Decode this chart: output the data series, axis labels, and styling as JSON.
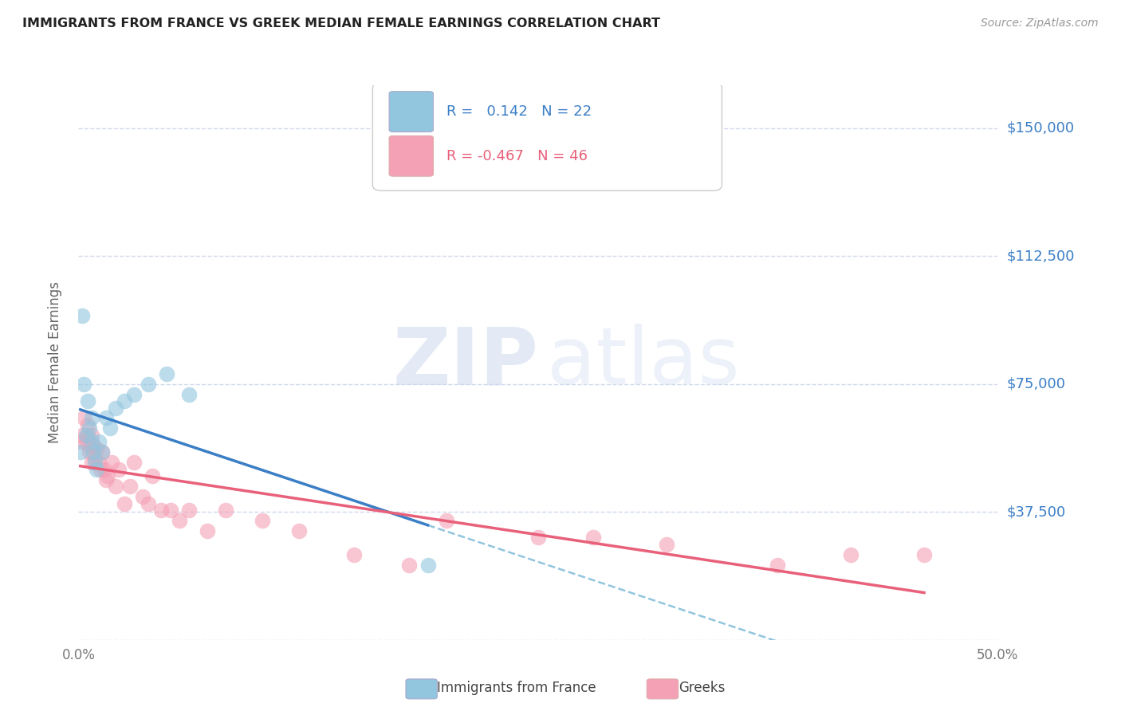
{
  "title": "IMMIGRANTS FROM FRANCE VS GREEK MEDIAN FEMALE EARNINGS CORRELATION CHART",
  "source_text": "Source: ZipAtlas.com",
  "ylabel": "Median Female Earnings",
  "xlim": [
    0.0,
    0.5
  ],
  "ylim": [
    0,
    162500
  ],
  "yticks": [
    0,
    37500,
    75000,
    112500,
    150000
  ],
  "ytick_labels": [
    "",
    "$37,500",
    "$75,000",
    "$112,500",
    "$150,000"
  ],
  "blue_color": "#92c5de",
  "pink_color": "#f4a0b5",
  "blue_line_color": "#3a7ec6",
  "pink_line_color": "#e8607a",
  "dashed_line_color": "#92c5de",
  "grid_color": "#d0d8ec",
  "background_color": "#ffffff",
  "france_x": [
    0.001,
    0.002,
    0.003,
    0.004,
    0.005,
    0.006,
    0.007,
    0.007,
    0.008,
    0.009,
    0.01,
    0.011,
    0.013,
    0.015,
    0.017,
    0.02,
    0.025,
    0.03,
    0.038,
    0.048,
    0.06,
    0.19
  ],
  "france_y": [
    55000,
    95000,
    75000,
    60000,
    70000,
    62000,
    65000,
    58000,
    55000,
    52000,
    50000,
    58000,
    55000,
    65000,
    62000,
    68000,
    70000,
    72000,
    75000,
    78000,
    72000,
    22000
  ],
  "greece_x": [
    0.001,
    0.002,
    0.003,
    0.004,
    0.005,
    0.005,
    0.006,
    0.006,
    0.007,
    0.007,
    0.008,
    0.008,
    0.009,
    0.01,
    0.011,
    0.012,
    0.013,
    0.014,
    0.015,
    0.016,
    0.018,
    0.02,
    0.022,
    0.025,
    0.028,
    0.03,
    0.035,
    0.038,
    0.04,
    0.045,
    0.05,
    0.055,
    0.06,
    0.07,
    0.08,
    0.1,
    0.12,
    0.15,
    0.18,
    0.2,
    0.25,
    0.28,
    0.32,
    0.38,
    0.42,
    0.46
  ],
  "greece_y": [
    58000,
    60000,
    65000,
    58000,
    63000,
    60000,
    57000,
    55000,
    60000,
    52000,
    57000,
    55000,
    53000,
    56000,
    52000,
    50000,
    55000,
    50000,
    47000,
    48000,
    52000,
    45000,
    50000,
    40000,
    45000,
    52000,
    42000,
    40000,
    48000,
    38000,
    38000,
    35000,
    38000,
    32000,
    38000,
    35000,
    32000,
    25000,
    22000,
    35000,
    30000,
    30000,
    28000,
    22000,
    25000,
    25000
  ]
}
